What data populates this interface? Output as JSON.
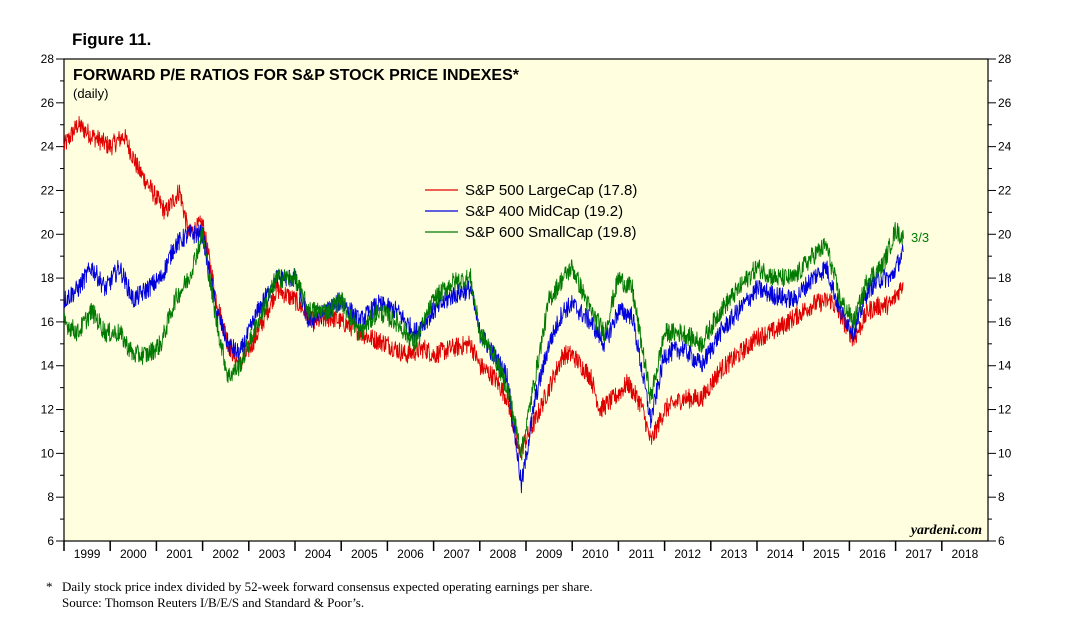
{
  "figure_label": "Figure 11.",
  "colors": {
    "background": "#ffffe0",
    "sp500": "#e00000",
    "sp400": "#0000dd",
    "sp600": "#007a00",
    "annotation": "#007a00"
  },
  "chart_data": {
    "type": "line",
    "title": "FORWARD P/E RATIOS FOR S&P STOCK PRICE INDEXES*",
    "subtitle": "(daily)",
    "xlabel": "",
    "ylabel": "",
    "ylim": [
      6,
      28
    ],
    "yticks": [
      6,
      8,
      10,
      12,
      14,
      16,
      18,
      20,
      22,
      24,
      26,
      28
    ],
    "xlim": [
      1999.0,
      2019.0
    ],
    "x_tick_labels": [
      "1999",
      "2000",
      "2001",
      "2002",
      "2003",
      "2004",
      "2005",
      "2006",
      "2007",
      "2008",
      "2009",
      "2010",
      "2011",
      "2012",
      "2013",
      "2014",
      "2015",
      "2016",
      "2017",
      "2018"
    ],
    "legend_position": "upper-center",
    "annotation": "3/3",
    "watermark": "yardeni.com",
    "series": [
      {
        "name": "S&P 500 LargeCap (17.8)",
        "color_key": "sp500",
        "x": [
          1999.0,
          1999.3,
          1999.6,
          2000.0,
          2000.3,
          2000.6,
          2000.9,
          2001.2,
          2001.5,
          2001.7,
          2002.0,
          2002.3,
          2002.55,
          2002.8,
          2003.2,
          2003.6,
          2004.0,
          2004.4,
          2004.8,
          2005.2,
          2005.6,
          2006.0,
          2006.4,
          2006.8,
          2007.0,
          2007.4,
          2007.8,
          2008.0,
          2008.3,
          2008.6,
          2008.85,
          2009.2,
          2009.5,
          2009.8,
          2010.0,
          2010.4,
          2010.6,
          2010.9,
          2011.2,
          2011.5,
          2011.7,
          2012.0,
          2012.4,
          2012.8,
          2013.2,
          2013.6,
          2014.0,
          2014.4,
          2014.8,
          2015.2,
          2015.6,
          2015.8,
          2016.1,
          2016.4,
          2016.6,
          2016.9,
          2017.17
        ],
        "values": [
          24.0,
          25.0,
          24.5,
          24.0,
          24.5,
          23.0,
          22.0,
          21.0,
          22.0,
          20.0,
          20.5,
          17.0,
          15.0,
          14.0,
          15.5,
          17.5,
          17.0,
          16.0,
          16.2,
          15.8,
          15.3,
          15.0,
          14.5,
          14.8,
          14.5,
          14.8,
          15.0,
          14.0,
          13.5,
          12.5,
          10.0,
          11.5,
          13.0,
          14.5,
          14.5,
          13.5,
          12.0,
          12.5,
          13.2,
          12.2,
          10.5,
          12.0,
          12.5,
          12.5,
          13.8,
          14.5,
          15.3,
          15.6,
          16.2,
          16.8,
          17.0,
          16.3,
          15.2,
          16.5,
          16.7,
          16.8,
          17.8
        ]
      },
      {
        "name": "S&P 400 MidCap (19.2)",
        "color_key": "sp400",
        "x": [
          1999.0,
          1999.3,
          1999.6,
          1999.9,
          2000.2,
          2000.5,
          2000.8,
          2001.1,
          2001.4,
          2001.7,
          2002.0,
          2002.3,
          2002.55,
          2002.8,
          2003.2,
          2003.6,
          2004.0,
          2004.3,
          2004.7,
          2005.0,
          2005.4,
          2005.8,
          2006.2,
          2006.6,
          2007.0,
          2007.4,
          2007.8,
          2008.0,
          2008.3,
          2008.6,
          2008.9,
          2009.2,
          2009.5,
          2009.8,
          2010.0,
          2010.4,
          2010.7,
          2011.0,
          2011.3,
          2011.7,
          2012.0,
          2012.4,
          2012.8,
          2013.2,
          2013.6,
          2014.0,
          2014.4,
          2014.8,
          2015.2,
          2015.5,
          2015.8,
          2016.1,
          2016.4,
          2016.7,
          2016.9,
          2017.17
        ],
        "values": [
          17.0,
          17.5,
          18.5,
          17.5,
          18.5,
          17.0,
          17.5,
          18.0,
          19.5,
          20.0,
          20.0,
          16.5,
          15.0,
          14.5,
          16.5,
          18.0,
          18.0,
          16.0,
          16.5,
          17.0,
          16.0,
          16.8,
          16.5,
          15.5,
          16.5,
          17.2,
          17.5,
          15.5,
          14.5,
          13.5,
          8.5,
          12.5,
          15.0,
          16.5,
          16.8,
          16.0,
          15.0,
          16.5,
          16.3,
          11.5,
          14.5,
          14.8,
          14.0,
          15.5,
          16.5,
          17.5,
          17.2,
          17.0,
          18.0,
          18.5,
          16.5,
          15.5,
          17.5,
          18.0,
          18.0,
          19.2
        ]
      },
      {
        "name": "S&P 600 SmallCap (19.8)",
        "color_key": "sp600",
        "x": [
          1999.0,
          1999.3,
          1999.6,
          1999.9,
          2000.2,
          2000.5,
          2000.8,
          2001.1,
          2001.4,
          2001.7,
          2002.0,
          2002.3,
          2002.55,
          2002.8,
          2003.2,
          2003.6,
          2004.0,
          2004.3,
          2004.7,
          2005.0,
          2005.4,
          2005.8,
          2006.2,
          2006.6,
          2007.0,
          2007.4,
          2007.8,
          2008.0,
          2008.3,
          2008.6,
          2008.9,
          2009.2,
          2009.5,
          2009.8,
          2010.0,
          2010.4,
          2010.7,
          2011.0,
          2011.3,
          2011.7,
          2012.0,
          2012.4,
          2012.8,
          2013.2,
          2013.6,
          2014.0,
          2014.4,
          2014.8,
          2015.2,
          2015.5,
          2015.8,
          2016.1,
          2016.4,
          2016.7,
          2016.8,
          2017.0,
          2017.17
        ],
        "values": [
          16.0,
          15.5,
          16.5,
          15.5,
          15.5,
          14.5,
          14.5,
          15.0,
          17.0,
          18.0,
          20.0,
          16.0,
          13.5,
          14.0,
          16.0,
          18.0,
          18.0,
          16.5,
          16.5,
          17.0,
          15.5,
          16.5,
          16.0,
          15.0,
          17.0,
          17.8,
          18.0,
          15.5,
          14.5,
          13.0,
          10.0,
          13.5,
          17.0,
          18.0,
          18.5,
          16.5,
          15.5,
          18.0,
          17.5,
          12.5,
          15.5,
          15.5,
          15.0,
          16.5,
          17.5,
          18.5,
          18.0,
          18.0,
          19.0,
          19.5,
          17.0,
          16.0,
          18.0,
          18.5,
          19.0,
          20.2,
          19.8
        ]
      }
    ]
  },
  "footnote": {
    "star": "*",
    "line1": "Daily stock price index divided by 52-week forward consensus expected operating earnings per share.",
    "line2": "Source: Thomson Reuters I/B/E/S and Standard & Poor’s."
  }
}
